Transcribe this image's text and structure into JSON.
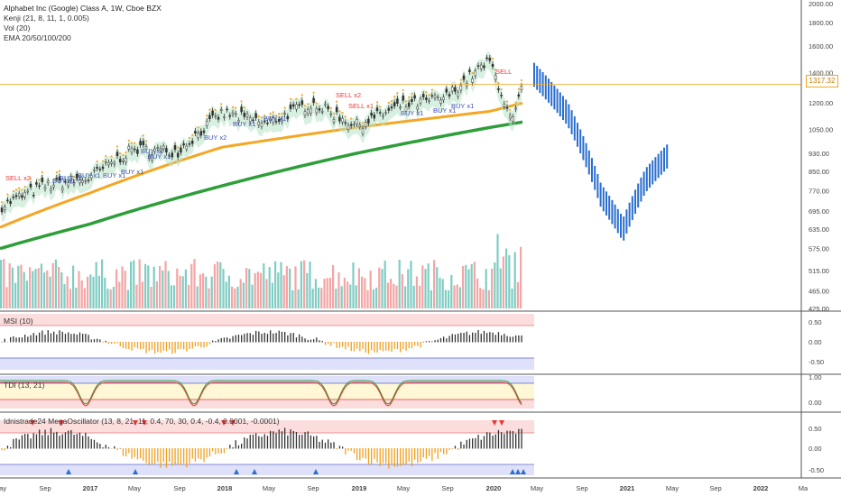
{
  "title": "Alphabet Inc (Google) Class A, 1W, Cboe BZX",
  "indicators": {
    "kenji": "Kenji (21, 8, 11, 1, 0.005)",
    "vol": "Vol (20)",
    "ema": "EMA 20/50/100/200"
  },
  "last_price": "1317.32",
  "colors": {
    "up": "#2a6ecf",
    "signal_sell": "#e53935",
    "signal_buy": "#3f51b5",
    "ema20": "#f5a623",
    "ema50": "#2e9e3a",
    "cloud": "#b7e4c7",
    "vol_up": "#7fcdc3",
    "vol_down": "#f4a5a5",
    "osc_pos": "#333333",
    "osc_neg": "#f0a020"
  },
  "price_axis": {
    "ticks": [
      "1800.00",
      "1600.00",
      "1400.00",
      "1200.00",
      "1050.00",
      "930.00",
      "850.00",
      "770.00",
      "695.00",
      "635.00",
      "575.00",
      "515.00",
      "465.00",
      "425.00"
    ],
    "top_label": "2000.00"
  },
  "time_axis": [
    "May",
    "Sep",
    "2017",
    "May",
    "Sep",
    "2018",
    "May",
    "Sep",
    "2019",
    "May",
    "Sep",
    "2020",
    "May",
    "Sep",
    "2021",
    "May",
    "Sep",
    "2022",
    "Ma"
  ],
  "signals": [
    {
      "label": "SELL x2",
      "kind": "sell"
    },
    {
      "label": "BUY x1",
      "kind": "buy"
    },
    {
      "label": "BUY x2",
      "kind": "buy"
    },
    {
      "label": "BUY x1",
      "kind": "buy"
    },
    {
      "label": "BUY x1",
      "kind": "buy"
    },
    {
      "label": "BUY x1",
      "kind": "buy"
    },
    {
      "label": "BUY x1",
      "kind": "buy"
    },
    {
      "label": "BUY x1",
      "kind": "buy"
    },
    {
      "label": "BUY x2",
      "kind": "buy"
    },
    {
      "label": "BUY x1",
      "kind": "buy"
    },
    {
      "label": "BUY x1",
      "kind": "buy"
    },
    {
      "label": "SELL x2",
      "kind": "sell"
    },
    {
      "label": "SELL x1",
      "kind": "sell"
    },
    {
      "label": "BUY x1",
      "kind": "buy"
    },
    {
      "label": "BUY x1",
      "kind": "buy"
    },
    {
      "label": "BUY x1",
      "kind": "buy"
    },
    {
      "label": "SELL",
      "kind": "sell"
    }
  ],
  "panels": {
    "msi": {
      "label": "MSI (10)",
      "ticks": [
        "0.50",
        "0.00",
        "-0.50"
      ]
    },
    "tdi": {
      "label": "TDI (13, 21)",
      "ticks": [
        "1.00",
        "0.00"
      ]
    },
    "mega": {
      "label": "Idnistrade24 MegaOscillator (13, 8, 21, 11, 0.4, 70, 30, 0.4, -0.4, 0.0001, -0.0001)",
      "ticks": [
        "0.50",
        "0.00",
        "-0.50"
      ]
    }
  },
  "chart_data": {
    "type": "candlestick",
    "interval": "1W",
    "price_series": {
      "name": "Alphabet Inc (Google) Class A",
      "points": [
        {
          "date": "2016-05",
          "close": 710
        },
        {
          "date": "2016-09",
          "close": 790
        },
        {
          "date": "2017-01",
          "close": 820
        },
        {
          "date": "2017-05",
          "close": 950
        },
        {
          "date": "2017-09",
          "close": 940
        },
        {
          "date": "2018-01",
          "close": 1140
        },
        {
          "date": "2018-05",
          "close": 1080
        },
        {
          "date": "2018-09",
          "close": 1200
        },
        {
          "date": "2019-01",
          "close": 1070
        },
        {
          "date": "2019-05",
          "close": 1180
        },
        {
          "date": "2019-09",
          "close": 1230
        },
        {
          "date": "2020-01",
          "close": 1480
        },
        {
          "date": "2020-03",
          "close": 1070
        },
        {
          "date": "2020-04",
          "close": 1317.32
        }
      ]
    },
    "projection_series": {
      "points": [
        {
          "date": "2020-05",
          "close": 1400
        },
        {
          "date": "2020-08",
          "close": 1150
        },
        {
          "date": "2020-11",
          "close": 760
        },
        {
          "date": "2021-01",
          "close": 640
        },
        {
          "date": "2021-03",
          "close": 820
        },
        {
          "date": "2021-05",
          "close": 930
        }
      ]
    },
    "ema_series": [
      {
        "name": "EMA 20",
        "points": [
          {
            "date": "2016-05",
            "value": 640
          },
          {
            "date": "2017-01",
            "value": 760
          },
          {
            "date": "2018-01",
            "value": 960
          },
          {
            "date": "2019-01",
            "value": 1060
          },
          {
            "date": "2020-01",
            "value": 1150
          },
          {
            "date": "2020-04",
            "value": 1200
          }
        ]
      },
      {
        "name": "EMA 50",
        "points": [
          {
            "date": "2016-05",
            "value": 575
          },
          {
            "date": "2017-01",
            "value": 650
          },
          {
            "date": "2018-01",
            "value": 790
          },
          {
            "date": "2019-01",
            "value": 930
          },
          {
            "date": "2020-01",
            "value": 1060
          },
          {
            "date": "2020-04",
            "value": 1090
          }
        ]
      }
    ],
    "ylim": [
      425,
      2000
    ],
    "y_scale": "log",
    "grid": false
  }
}
